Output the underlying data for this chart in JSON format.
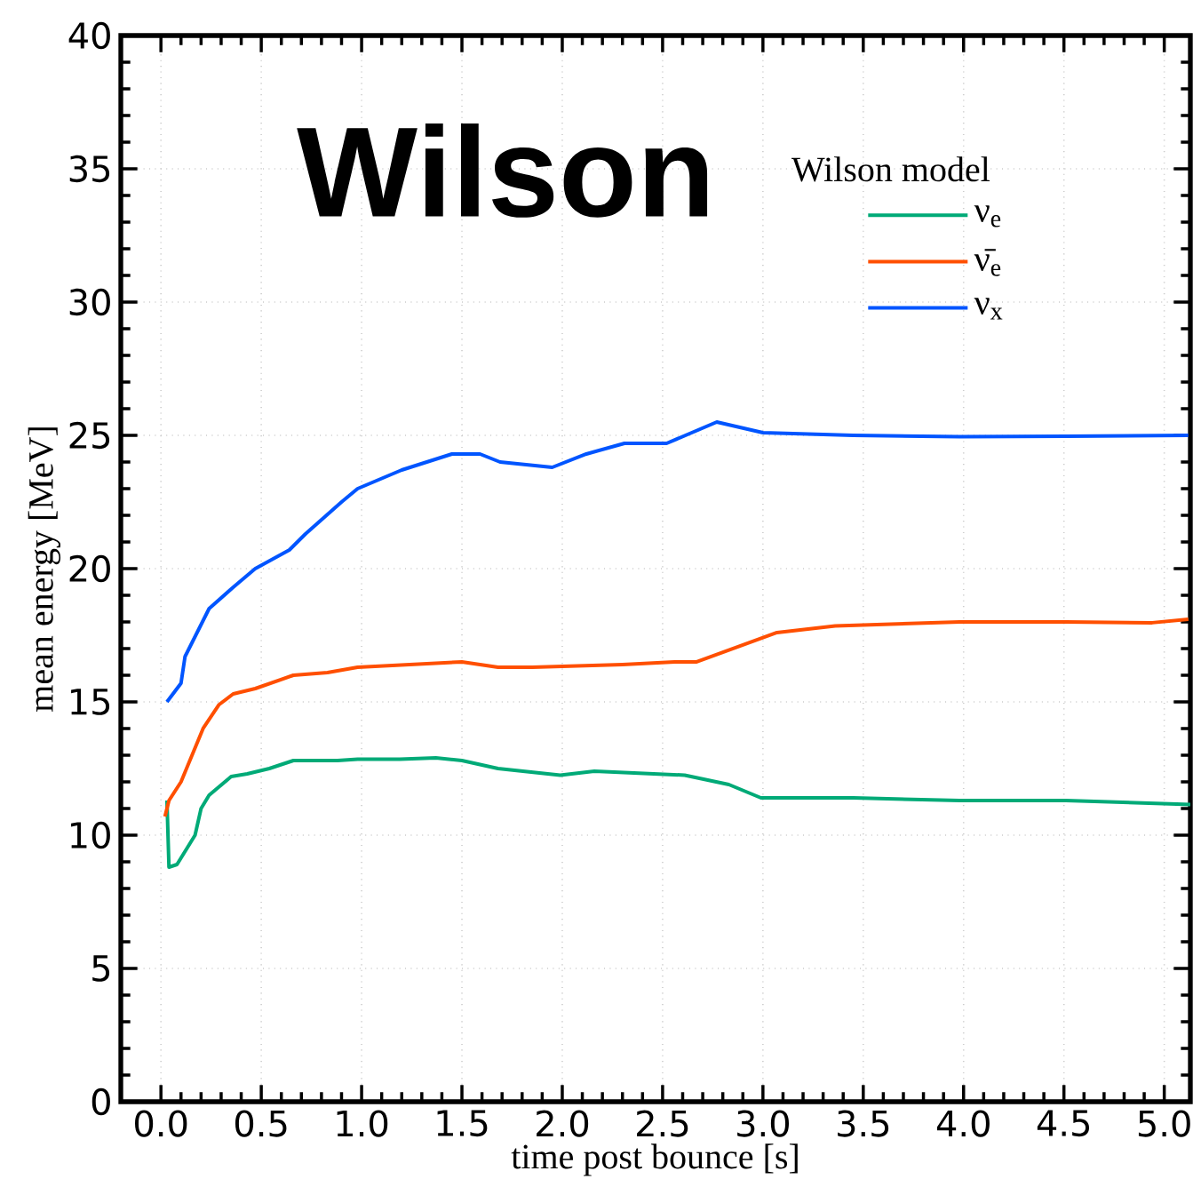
{
  "chart_data": {
    "type": "line",
    "title": "Wilson",
    "legend_title": "Wilson model",
    "xlabel": "time post bounce [s]",
    "ylabel": "mean energy [MeV]",
    "xlim": [
      -0.2,
      5.13
    ],
    "ylim": [
      0,
      40
    ],
    "xticks": [
      {
        "value": 0,
        "label": "0.0"
      },
      0.5,
      {
        "value": 1,
        "label": "1.0"
      },
      1.5,
      {
        "value": 2,
        "label": "2.0"
      },
      2.5,
      {
        "value": 3,
        "label": "3.0"
      },
      3.5,
      {
        "value": 4,
        "label": "4.0"
      },
      4.5,
      {
        "value": 5,
        "label": "5.0"
      }
    ],
    "yticks": [
      0,
      5,
      10,
      15,
      20,
      25,
      30,
      35,
      40
    ],
    "grid": true,
    "legend": "top right",
    "marker": "none",
    "line_style": "solid",
    "series": [
      {
        "name": "ν$_{e}$",
        "color": "#00aa77",
        "x": [
          0.03,
          0.04,
          0.08,
          0.17,
          0.2,
          0.24,
          0.35,
          0.43,
          0.54,
          0.66,
          0.88,
          0.98,
          1.19,
          1.37,
          1.5,
          1.68,
          1.99,
          2.16,
          2.61,
          2.83,
          2.99,
          3.45,
          3.98,
          4.51,
          5.13
        ],
        "values": [
          11.3,
          8.8,
          8.9,
          10.0,
          11.0,
          11.5,
          12.2,
          12.3,
          12.5,
          12.8,
          12.8,
          12.85,
          12.85,
          12.9,
          12.8,
          12.5,
          12.25,
          12.4,
          12.25,
          11.9,
          11.4,
          11.4,
          11.3,
          11.3,
          11.15
        ]
      },
      {
        "name": "ν̄$_{e}$",
        "color": "#ff4f00",
        "x": [
          0.02,
          0.04,
          0.1,
          0.21,
          0.29,
          0.36,
          0.47,
          0.66,
          0.83,
          0.98,
          1.5,
          1.68,
          1.85,
          2.3,
          2.56,
          2.67,
          3.07,
          3.36,
          3.98,
          4.51,
          4.94,
          5.12
        ],
        "values": [
          10.7,
          11.3,
          12.0,
          14.0,
          14.9,
          15.3,
          15.5,
          16.0,
          16.1,
          16.3,
          16.5,
          16.3,
          16.3,
          16.4,
          16.5,
          16.5,
          17.6,
          17.85,
          18.0,
          18.0,
          17.97,
          18.1
        ]
      },
      {
        "name": "ν$_{x}$",
        "color": "#0055ff",
        "x": [
          0.03,
          0.1,
          0.12,
          0.24,
          0.36,
          0.47,
          0.64,
          0.72,
          0.9,
          0.98,
          1.2,
          1.45,
          1.59,
          1.69,
          1.95,
          2.12,
          2.31,
          2.52,
          2.77,
          3.0,
          3.45,
          3.98,
          4.51,
          5.12
        ],
        "values": [
          15.0,
          15.7,
          16.7,
          18.5,
          19.3,
          20.0,
          20.7,
          21.3,
          22.5,
          23.0,
          23.7,
          24.3,
          24.3,
          24.0,
          23.8,
          24.3,
          24.7,
          24.7,
          25.5,
          25.1,
          25.0,
          24.95,
          24.97,
          25.0
        ]
      }
    ]
  }
}
